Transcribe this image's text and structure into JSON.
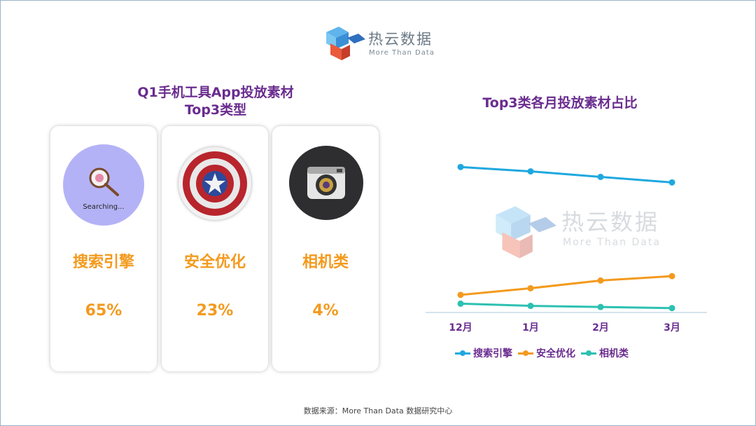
{
  "logo": {
    "name": "热云数据",
    "tagline": "More Than Data"
  },
  "left_panel": {
    "title_line1": "Q1手机工具App投放素材",
    "title_line2": "Top3类型",
    "cards": [
      {
        "label": "搜索引擎",
        "value": "65%",
        "icon": "search-icon",
        "icon_text": "Searching..."
      },
      {
        "label": "安全优化",
        "value": "23%",
        "icon": "shield-icon"
      },
      {
        "label": "相机类",
        "value": "4%",
        "icon": "camera-icon"
      }
    ]
  },
  "chart_data": {
    "type": "line",
    "title": "Top3类各月投放素材占比",
    "categories": [
      "12月",
      "1月",
      "2月",
      "3月"
    ],
    "y_axis_shown": false,
    "grid": false,
    "legend_position": "bottom",
    "series": [
      {
        "name": "搜索引擎",
        "color": "#1fa8df",
        "values": [
          0.66,
          0.64,
          0.615,
          0.59
        ]
      },
      {
        "name": "安全优化",
        "color": "#f39a1e",
        "values": [
          0.08,
          0.11,
          0.145,
          0.165
        ]
      },
      {
        "name": "相机类",
        "color": "#2cc1b1",
        "values": [
          0.04,
          0.03,
          0.025,
          0.02
        ]
      }
    ]
  },
  "source": "数据来源：More Than Data 数据研究中心"
}
